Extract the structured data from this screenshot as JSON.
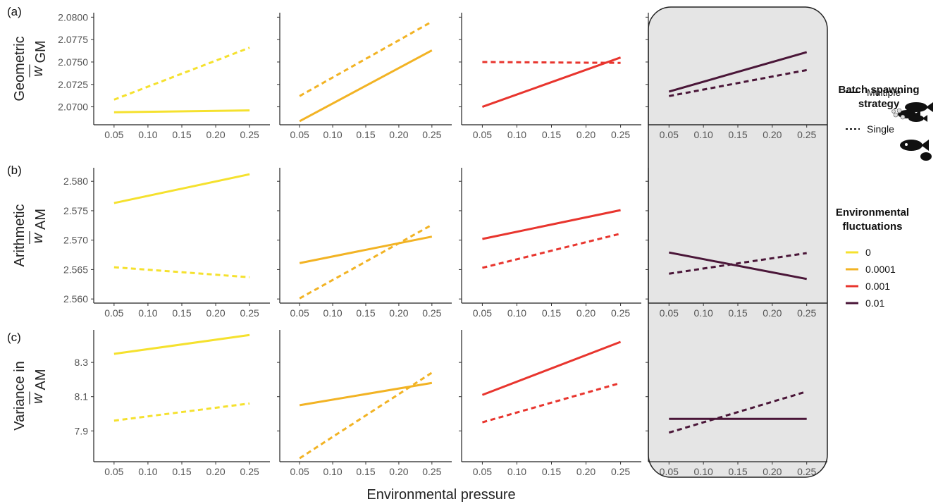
{
  "chart_data": {
    "type": "line",
    "panel_labels": [
      "(a)",
      "(b)",
      "(c)"
    ],
    "x_label": "Environmental pressure",
    "x_ticks": [
      "0.05",
      "0.10",
      "0.15",
      "0.20",
      "0.25"
    ],
    "x": [
      0.05,
      0.25
    ],
    "xlim": [
      0.02,
      0.28
    ],
    "grid": false,
    "rows": [
      {
        "label_lines": [
          "Geometric",
          "w",
          "GM"
        ],
        "ylim": [
          2.068,
          2.0805
        ],
        "y_ticks": [
          2.07,
          2.0725,
          2.075,
          2.0775,
          2.08
        ],
        "y_tick_labels": [
          "2.0700",
          "2.0725",
          "2.0750",
          "2.0775",
          "2.0800"
        ]
      },
      {
        "label_lines": [
          "Arithmetic",
          "w",
          "AM"
        ],
        "ylim": [
          2.5593,
          2.5823
        ],
        "y_ticks": [
          2.56,
          2.565,
          2.57,
          2.575,
          2.58
        ],
        "y_tick_labels": [
          "2.560",
          "2.565",
          "2.570",
          "2.575",
          "2.580"
        ]
      },
      {
        "label_lines": [
          "Variance in",
          "w",
          "AM"
        ],
        "ylim": [
          7.72,
          8.49
        ],
        "y_ticks": [
          7.9,
          8.1,
          8.3
        ],
        "y_tick_labels": [
          "7.9",
          "8.1",
          "8.3"
        ]
      }
    ],
    "fluctuation_levels": [
      {
        "name": "0",
        "color": "#F5E12E"
      },
      {
        "name": "0.0001",
        "color": "#F2B324"
      },
      {
        "name": "0.001",
        "color": "#E8352E"
      },
      {
        "name": "0.01",
        "color": "#4A1638"
      }
    ],
    "series": [
      [
        {
          "multiple": [
            2.0694,
            2.0696
          ],
          "single": [
            2.0708,
            2.0766
          ]
        },
        {
          "multiple": [
            2.0684,
            2.0763
          ],
          "single": [
            2.0712,
            2.0795
          ]
        },
        {
          "multiple": [
            2.07,
            2.0755
          ],
          "single": [
            2.075,
            2.0749
          ]
        },
        {
          "multiple": [
            2.0717,
            2.0761
          ],
          "single": [
            2.0712,
            2.0741
          ]
        }
      ],
      [
        {
          "multiple": [
            2.5763,
            2.5812
          ],
          "single": [
            2.5654,
            2.5637
          ]
        },
        {
          "multiple": [
            2.5661,
            2.5706
          ],
          "single": [
            2.5601,
            2.5726
          ]
        },
        {
          "multiple": [
            2.5702,
            2.5751
          ],
          "single": [
            2.5653,
            2.5711
          ]
        },
        {
          "multiple": [
            2.5679,
            2.5634
          ],
          "single": [
            2.5643,
            2.5678
          ]
        }
      ],
      [
        {
          "multiple": [
            8.35,
            8.46
          ],
          "single": [
            7.96,
            8.06
          ]
        },
        {
          "multiple": [
            8.05,
            8.18
          ],
          "single": [
            7.74,
            8.24
          ]
        },
        {
          "multiple": [
            8.11,
            8.42
          ],
          "single": [
            7.95,
            8.18
          ]
        },
        {
          "multiple": [
            7.97,
            7.97
          ],
          "single": [
            7.89,
            8.13
          ]
        }
      ]
    ],
    "highlighted_column": 3,
    "legend": {
      "strategy_title_lines": [
        "Batch spawning",
        "strategy"
      ],
      "strategy_items": [
        {
          "name": "Multiple",
          "linestyle": "solid",
          "icon": "multiple-fish-icon"
        },
        {
          "name": "Single",
          "linestyle": "dashed",
          "icon": "single-fish-icon"
        }
      ],
      "fluct_title_lines": [
        "Environmental",
        "fluctuations"
      ],
      "position": "right"
    }
  }
}
